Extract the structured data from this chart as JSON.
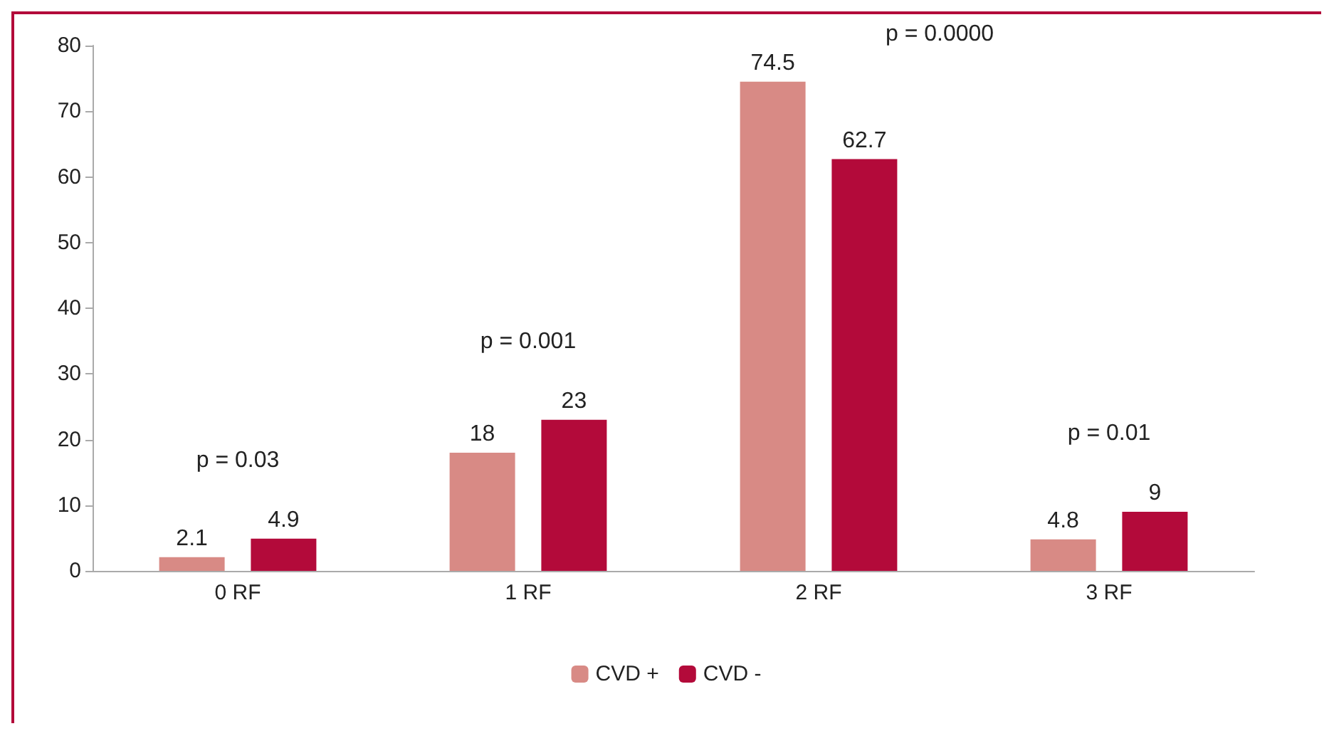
{
  "chart_data": {
    "type": "bar",
    "categories": [
      "0 RF",
      "1 RF",
      "2 RF",
      "3 RF"
    ],
    "series": [
      {
        "name": "CVD +",
        "color": "#d88a85",
        "values": [
          2.1,
          18,
          74.5,
          4.8
        ]
      },
      {
        "name": "CVD -",
        "color": "#b30a3a",
        "values": [
          4.9,
          23,
          62.7,
          9
        ]
      }
    ],
    "ylim": [
      0,
      80
    ],
    "yticks": [
      0,
      10,
      20,
      30,
      40,
      50,
      60,
      70,
      80
    ],
    "grid": false,
    "legend": "bottom",
    "data_labels": true,
    "annotations": [
      "p = 0.03",
      "p = 0.001",
      "p = 0.0000",
      "p = 0.01"
    ]
  }
}
